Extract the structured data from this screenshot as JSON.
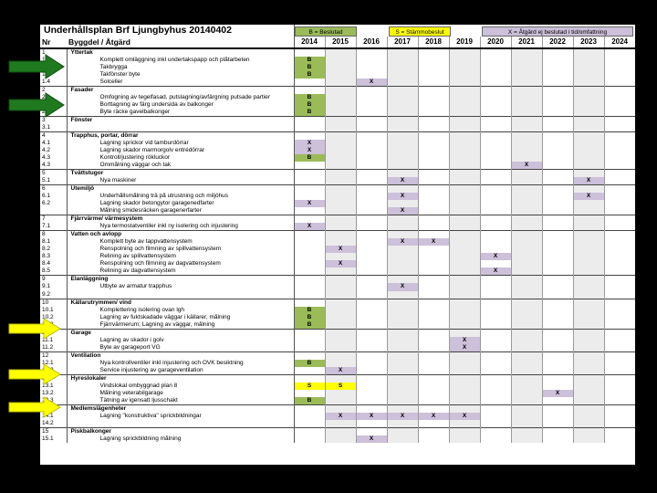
{
  "title": "Underhållsplan Brf Ljungbyhus 20140402",
  "header": {
    "nr": "Nr",
    "group": "Byggdel / Åtgärd"
  },
  "legend": {
    "b": "B = Beslutad",
    "s": "S = Stämmobeslut",
    "x": "X = Åtgärd ej beslutad i tid/omfattning"
  },
  "years": [
    "2014",
    "2015",
    "2016",
    "2017",
    "2018",
    "2019",
    "2020",
    "2021",
    "2022",
    "2023",
    "2024"
  ],
  "colors": {
    "beslutad": "#9bbb59",
    "stammobeslut": "#ffff00",
    "ej_beslutad": "#ccc0da",
    "arrow_green": "#1f7a1f",
    "arrow_yellow": "#ffff00"
  },
  "rows": [
    {
      "nr": "1",
      "desc": "Yttertak",
      "section": true
    },
    {
      "nr": "1.1",
      "desc": "Komplett omläggning inkl undertakspapp och plåtarbeten",
      "marks": {
        "2014": "B"
      }
    },
    {
      "nr": "1.2",
      "desc": "Takbrygga",
      "marks": {
        "2014": "B"
      }
    },
    {
      "nr": "1.3",
      "desc": "Takfönster byte",
      "marks": {
        "2014": "B"
      }
    },
    {
      "nr": "1.4",
      "desc": "Solceller",
      "marks": {
        "2016": "X"
      }
    },
    {
      "nr": "2",
      "desc": "Fasader",
      "section": true
    },
    {
      "nr": "2.1",
      "desc": "Omfogning av tegelfasad, putslagning/avfärgning putsade partier",
      "marks": {
        "2014": "B"
      }
    },
    {
      "nr": "2.2",
      "desc": "Borttagning av färg undersida av balkonger",
      "marks": {
        "2014": "B"
      }
    },
    {
      "nr": "2.3",
      "desc": "Byte räcke gavelbalkonger",
      "marks": {
        "2014": "B"
      }
    },
    {
      "nr": "3",
      "desc": "Fönster",
      "section": true
    },
    {
      "nr": "3.1",
      "desc": ""
    },
    {
      "nr": "4",
      "desc": "Trapphus, portar, dörrar",
      "section": true
    },
    {
      "nr": "4.1",
      "desc": "Lagning sprickor vid tamburdörrar",
      "marks": {
        "2014": "X"
      }
    },
    {
      "nr": "4.2",
      "desc": "Lagning skador marmorgolv entrédörrar",
      "marks": {
        "2014": "X"
      }
    },
    {
      "nr": "4.3",
      "desc": "Kontroll/justering rökluckor",
      "marks": {
        "2014": "B"
      }
    },
    {
      "nr": "4.3",
      "desc": "Ommålning väggar och tak",
      "marks": {
        "2021": "X"
      }
    },
    {
      "nr": "5",
      "desc": "Tvättstugor",
      "section": true
    },
    {
      "nr": "5.1",
      "desc": "Nya maskiner",
      "marks": {
        "2017": "X",
        "2023": "X"
      }
    },
    {
      "nr": "6",
      "desc": "Utemiljö",
      "section": true
    },
    {
      "nr": "6.1",
      "desc": "Underhållsmålning trä på utrustning och miljöhus",
      "marks": {
        "2017": "X",
        "2023": "X"
      }
    },
    {
      "nr": "6.2",
      "desc": "Lagning skador betongytor garagenedfarter",
      "marks": {
        "2014": "X"
      }
    },
    {
      "nr": "",
      "desc": "Målning smidesräcken garagenerfarter",
      "marks": {
        "2017": "X"
      }
    },
    {
      "nr": "7",
      "desc": "Fjärrvärme/ värmesystem",
      "section": true
    },
    {
      "nr": "7.1",
      "desc": "Nya termostatventiler inkl ny isolering och injustering",
      "marks": {
        "2014": "X"
      }
    },
    {
      "nr": "8",
      "desc": "Vatten och avlopp",
      "section": true
    },
    {
      "nr": "8.1",
      "desc": "Komplett byte av tappvattensystem",
      "marks": {
        "2017": "X",
        "2018": "X"
      }
    },
    {
      "nr": "8.2",
      "desc": "Renspolning och filmning av spillvattensystem",
      "marks": {
        "2015": "X"
      }
    },
    {
      "nr": "8.3",
      "desc": "Relining av spillvattensystem",
      "marks": {
        "2020": "X"
      }
    },
    {
      "nr": "8.4",
      "desc": "Renspolning och filmning av dagvattensystem",
      "marks": {
        "2015": "X"
      }
    },
    {
      "nr": "8.5",
      "desc": "Relining av dagvattensystem",
      "marks": {
        "2020": "X"
      }
    },
    {
      "nr": "9",
      "desc": "Elanläggning",
      "section": true
    },
    {
      "nr": "9.1",
      "desc": "Utbyte av armatur trapphus",
      "marks": {
        "2017": "X"
      }
    },
    {
      "nr": "9.2",
      "desc": ""
    },
    {
      "nr": "10",
      "desc": "Källarutrymmen/ vind",
      "section": true
    },
    {
      "nr": "10.1",
      "desc": "Komplettering isolering ovan lgh",
      "marks": {
        "2014": "B"
      }
    },
    {
      "nr": "10.2",
      "desc": "Lagning av fuktskadade väggar i källarer, målning",
      "marks": {
        "2014": "B"
      }
    },
    {
      "nr": "10.3",
      "desc": "Fjärrvärmerum; Lagning av väggar, målning",
      "marks": {
        "2014": "B"
      }
    },
    {
      "nr": "11",
      "desc": "Garage",
      "section": true
    },
    {
      "nr": "11.1",
      "desc": "Lagning av skador i golv",
      "marks": {
        "2019": "X"
      }
    },
    {
      "nr": "11.2",
      "desc": "Byte av garageport VG",
      "marks": {
        "2019": "X"
      }
    },
    {
      "nr": "12",
      "desc": "Ventilation",
      "section": true
    },
    {
      "nr": "12.1",
      "desc": "Nya kontrollventiler inkl injustering och OVK besiktning",
      "marks": {
        "2014": "B"
      }
    },
    {
      "nr": "12.2",
      "desc": "Service injustering av garageventilation",
      "marks": {
        "2015": "X"
      }
    },
    {
      "nr": "13",
      "desc": "Hyreslokaler",
      "section": true
    },
    {
      "nr": "13.1",
      "desc": "Vindslokal ombyggnad plan 8",
      "marks": {
        "2014": "S",
        "2015": "S"
      }
    },
    {
      "nr": "13.2",
      "desc": "Målning veterabilgarage",
      "marks": {
        "2022": "X"
      }
    },
    {
      "nr": "13.3",
      "desc": "Tätning av igensatt ljusschakt",
      "marks": {
        "2014": "B"
      }
    },
    {
      "nr": "14",
      "desc": "Medlemslägenheter",
      "section": true
    },
    {
      "nr": "14.1",
      "desc": "Lagning \"konstruktiva\" sprickbildningar",
      "marks": {
        "2015": "X",
        "2016": "X",
        "2017": "X",
        "2018": "X",
        "2019": "X"
      }
    },
    {
      "nr": "14.2",
      "desc": ""
    },
    {
      "nr": "15",
      "desc": "Piskbalkonger",
      "section": true
    },
    {
      "nr": "15.1",
      "desc": "Lagning sprickbildning målning",
      "marks": {
        "2016": "X"
      }
    }
  ]
}
